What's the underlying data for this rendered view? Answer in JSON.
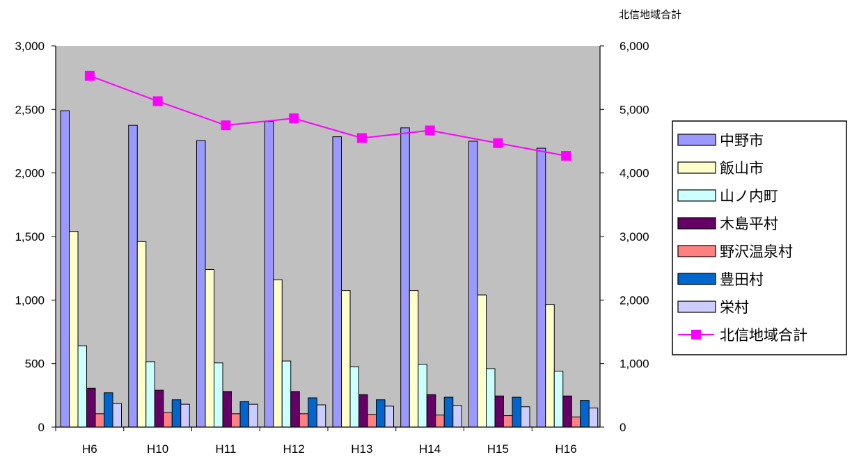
{
  "chart_data": {
    "type": "bar",
    "categories": [
      "H6",
      "H10",
      "H11",
      "H12",
      "H13",
      "H14",
      "H15",
      "H16"
    ],
    "series": [
      {
        "name": "中野市",
        "color": "#9999ff",
        "axis": "left",
        "values": [
          2490,
          2375,
          2255,
          2405,
          2285,
          2355,
          2250,
          2195
        ]
      },
      {
        "name": "飯山市",
        "color": "#ffffcc",
        "axis": "left",
        "values": [
          1540,
          1460,
          1240,
          1160,
          1075,
          1075,
          1040,
          965
        ]
      },
      {
        "name": "山ノ内町",
        "color": "#ccffff",
        "axis": "left",
        "values": [
          640,
          515,
          505,
          520,
          475,
          495,
          460,
          440
        ]
      },
      {
        "name": "木島平村",
        "color": "#660066",
        "axis": "left",
        "values": [
          305,
          290,
          280,
          280,
          255,
          255,
          245,
          245
        ]
      },
      {
        "name": "野沢温泉村",
        "color": "#ff8080",
        "axis": "left",
        "values": [
          105,
          115,
          105,
          105,
          100,
          95,
          90,
          80
        ]
      },
      {
        "name": "豊田村",
        "color": "#0066cc",
        "axis": "left",
        "values": [
          270,
          215,
          200,
          230,
          215,
          235,
          235,
          210
        ]
      },
      {
        "name": "栄村",
        "color": "#ccccff",
        "axis": "left",
        "values": [
          185,
          180,
          180,
          175,
          165,
          170,
          160,
          150
        ]
      },
      {
        "name": "北信地域合計",
        "color": "#ff00ff",
        "axis": "right",
        "type": "line",
        "values": [
          5530,
          5130,
          4750,
          4860,
          4550,
          4670,
          4470,
          4270
        ]
      }
    ],
    "y_left": {
      "min": 0,
      "max": 3000,
      "step": 500,
      "ticks": [
        "0",
        "500",
        "1,000",
        "1,500",
        "2,000",
        "2,500",
        "3,000"
      ]
    },
    "y_right": {
      "min": 0,
      "max": 6000,
      "step": 1000,
      "label": "北信地域合計",
      "ticks": [
        "0",
        "1,000",
        "2,000",
        "3,000",
        "4,000",
        "5,000",
        "6,000"
      ]
    },
    "plot_background": "#c0c0c0",
    "grid": false,
    "legend_position": "right"
  }
}
